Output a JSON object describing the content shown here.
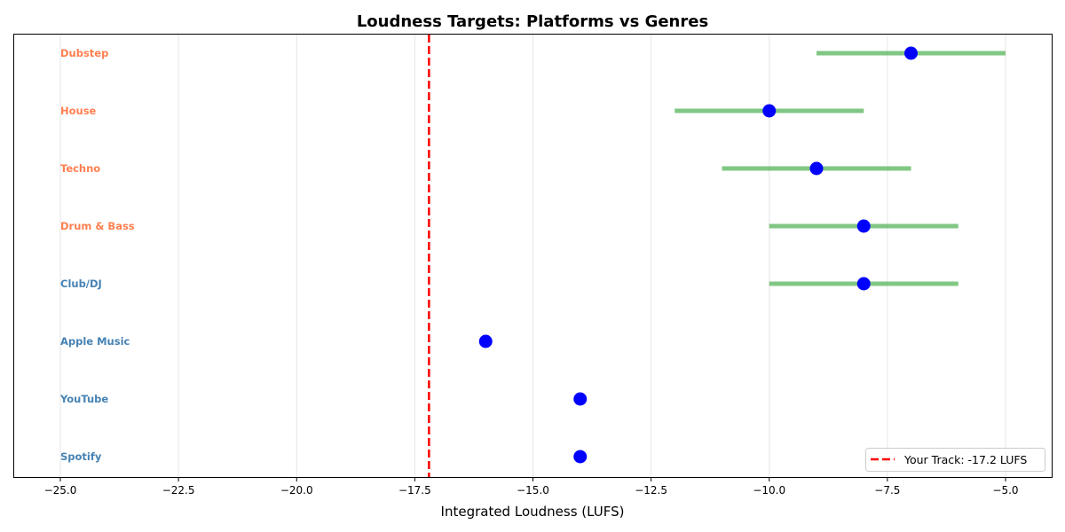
{
  "chart_data": {
    "type": "scatter",
    "title": "Loudness Targets: Platforms vs Genres",
    "xlabel": "Integrated Loudness (LUFS)",
    "ylabel": "",
    "xlim": [
      -26,
      -4
    ],
    "xticks": [
      -25.0,
      -22.5,
      -20.0,
      -17.5,
      -15.0,
      -12.5,
      -10.0,
      -7.5,
      -5.0
    ],
    "xtick_labels": [
      "−25.0",
      "−22.5",
      "−20.0",
      "−17.5",
      "−15.0",
      "−12.5",
      "−10.0",
      "−7.5",
      "−5.0"
    ],
    "grid": "x",
    "items": [
      {
        "name": "Spotify",
        "type": "platform",
        "target": -14,
        "range": null
      },
      {
        "name": "YouTube",
        "type": "platform",
        "target": -14,
        "range": null
      },
      {
        "name": "Apple Music",
        "type": "platform",
        "target": -16,
        "range": null
      },
      {
        "name": "Club/DJ",
        "type": "platform",
        "target": -8,
        "range": [
          -10,
          -6
        ]
      },
      {
        "name": "Drum & Bass",
        "type": "genre",
        "target": -8,
        "range": [
          -10,
          -6
        ]
      },
      {
        "name": "Techno",
        "type": "genre",
        "target": -9,
        "range": [
          -11,
          -7
        ]
      },
      {
        "name": "House",
        "type": "genre",
        "target": -10,
        "range": [
          -12,
          -8
        ]
      },
      {
        "name": "Dubstep",
        "type": "genre",
        "target": -7,
        "range": [
          -9,
          -5
        ]
      }
    ],
    "reference_line": {
      "value": -17.2,
      "label": "Your Track: -17.2 LUFS",
      "style": "dashed",
      "color": "#ff0000"
    },
    "legend": {
      "position": "lower right",
      "entries": [
        "Your Track: -17.2 LUFS"
      ]
    },
    "colors": {
      "platform_label": "#4682b4",
      "genre_label": "#ff7f50",
      "marker": "#0000ff",
      "range_bar": "#4caf50"
    }
  }
}
